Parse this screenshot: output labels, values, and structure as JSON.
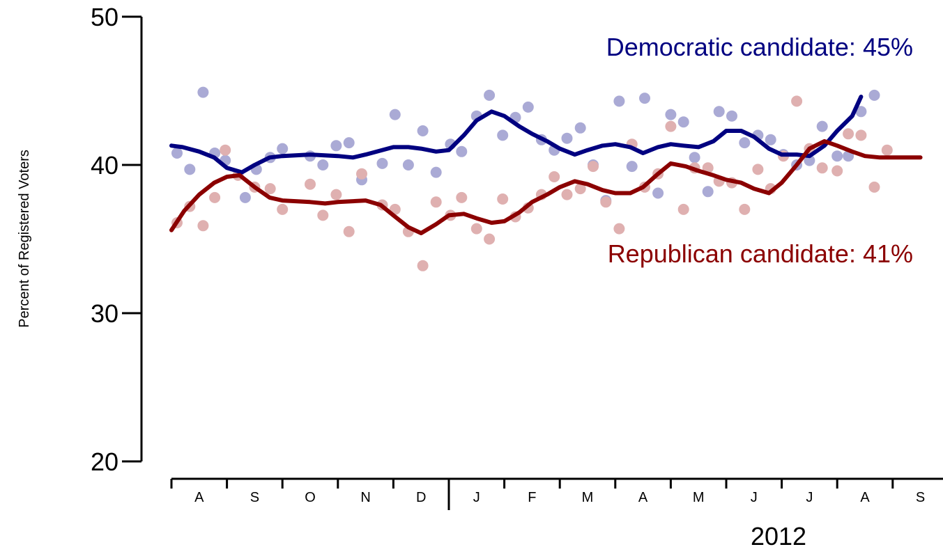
{
  "chart_data": {
    "type": "line",
    "ylabel": "Percent of Registered Voters",
    "xlabel": "",
    "ylim": [
      20,
      50
    ],
    "yticks": [
      20,
      30,
      40,
      50
    ],
    "year_label": "2012",
    "month_labels": [
      "A",
      "S",
      "O",
      "N",
      "D",
      "J",
      "F",
      "M",
      "A",
      "M",
      "J",
      "J",
      "A",
      "S"
    ],
    "grid": false,
    "series": [
      {
        "name": "Democratic candidate",
        "label": "Democratic candidate: 45%",
        "line_color": "#000080",
        "point_color": "#aaaad5",
        "points": [
          [
            0.1,
            40.8
          ],
          [
            0.33,
            39.7
          ],
          [
            0.57,
            44.9
          ],
          [
            0.78,
            40.8
          ],
          [
            0.97,
            40.3
          ],
          [
            1.33,
            37.8
          ],
          [
            1.53,
            39.7
          ],
          [
            1.78,
            40.5
          ],
          [
            2.0,
            41.1
          ],
          [
            2.5,
            40.6
          ],
          [
            2.73,
            40.0
          ],
          [
            2.97,
            41.3
          ],
          [
            3.2,
            41.5
          ],
          [
            3.43,
            39.0
          ],
          [
            3.8,
            40.1
          ],
          [
            4.03,
            43.4
          ],
          [
            4.27,
            40.0
          ],
          [
            4.53,
            42.3
          ],
          [
            4.77,
            39.5
          ],
          [
            5.03,
            41.4
          ],
          [
            5.23,
            40.9
          ],
          [
            5.5,
            43.3
          ],
          [
            5.73,
            44.7
          ],
          [
            5.97,
            42.0
          ],
          [
            6.2,
            43.2
          ],
          [
            6.43,
            43.9
          ],
          [
            6.67,
            41.7
          ],
          [
            6.9,
            41.0
          ],
          [
            7.13,
            41.8
          ],
          [
            7.37,
            42.5
          ],
          [
            7.6,
            40.0
          ],
          [
            7.83,
            37.6
          ],
          [
            8.07,
            44.3
          ],
          [
            8.3,
            39.9
          ],
          [
            8.53,
            44.5
          ],
          [
            8.77,
            38.1
          ],
          [
            9.0,
            43.4
          ],
          [
            9.23,
            42.9
          ],
          [
            9.43,
            40.5
          ],
          [
            9.67,
            38.2
          ],
          [
            9.87,
            43.6
          ],
          [
            10.1,
            43.3
          ],
          [
            10.33,
            41.5
          ],
          [
            10.57,
            42.0
          ],
          [
            10.8,
            41.7
          ],
          [
            11.03,
            40.7
          ],
          [
            11.27,
            40.0
          ],
          [
            11.5,
            40.3
          ],
          [
            11.73,
            42.6
          ],
          [
            12.0,
            40.6
          ],
          [
            12.2,
            40.6
          ],
          [
            12.43,
            43.6
          ],
          [
            12.67,
            44.7
          ]
        ],
        "trend": [
          [
            0.0,
            41.3
          ],
          [
            0.2,
            41.2
          ],
          [
            0.5,
            40.9
          ],
          [
            0.77,
            40.5
          ],
          [
            1.0,
            39.8
          ],
          [
            1.27,
            39.5
          ],
          [
            1.5,
            40.0
          ],
          [
            1.77,
            40.5
          ],
          [
            2.0,
            40.6
          ],
          [
            2.5,
            40.7
          ],
          [
            3.0,
            40.6
          ],
          [
            3.27,
            40.5
          ],
          [
            3.5,
            40.7
          ],
          [
            4.0,
            41.2
          ],
          [
            4.27,
            41.2
          ],
          [
            4.5,
            41.1
          ],
          [
            4.77,
            40.9
          ],
          [
            5.0,
            41.0
          ],
          [
            5.27,
            42.0
          ],
          [
            5.5,
            43.0
          ],
          [
            5.77,
            43.6
          ],
          [
            6.0,
            43.3
          ],
          [
            6.27,
            42.6
          ],
          [
            6.5,
            42.1
          ],
          [
            6.77,
            41.6
          ],
          [
            7.0,
            41.1
          ],
          [
            7.27,
            40.7
          ],
          [
            7.5,
            41.0
          ],
          [
            7.77,
            41.3
          ],
          [
            8.0,
            41.4
          ],
          [
            8.27,
            41.2
          ],
          [
            8.5,
            40.8
          ],
          [
            8.77,
            41.2
          ],
          [
            9.0,
            41.4
          ],
          [
            9.23,
            41.3
          ],
          [
            9.5,
            41.2
          ],
          [
            9.77,
            41.6
          ],
          [
            10.0,
            42.3
          ],
          [
            10.27,
            42.3
          ],
          [
            10.5,
            41.9
          ],
          [
            10.77,
            41.1
          ],
          [
            11.0,
            40.7
          ],
          [
            11.27,
            40.7
          ],
          [
            11.5,
            40.6
          ],
          [
            11.77,
            41.3
          ],
          [
            12.0,
            42.3
          ],
          [
            12.27,
            43.3
          ],
          [
            12.43,
            44.6
          ]
        ]
      },
      {
        "name": "Republican candidate",
        "label": "Republican candidate: 41%",
        "line_color": "#8b0000",
        "point_color": "#dfb0b0",
        "points": [
          [
            0.1,
            36.1
          ],
          [
            0.33,
            37.2
          ],
          [
            0.57,
            35.9
          ],
          [
            0.78,
            37.8
          ],
          [
            0.97,
            41.0
          ],
          [
            1.2,
            39.3
          ],
          [
            1.5,
            38.5
          ],
          [
            1.78,
            38.4
          ],
          [
            2.0,
            37.0
          ],
          [
            2.5,
            38.7
          ],
          [
            2.73,
            36.6
          ],
          [
            2.97,
            38.0
          ],
          [
            3.2,
            35.5
          ],
          [
            3.43,
            39.4
          ],
          [
            3.8,
            37.3
          ],
          [
            4.03,
            37.0
          ],
          [
            4.27,
            35.5
          ],
          [
            4.53,
            33.2
          ],
          [
            4.77,
            37.5
          ],
          [
            5.03,
            36.6
          ],
          [
            5.23,
            37.8
          ],
          [
            5.5,
            35.7
          ],
          [
            5.73,
            35.0
          ],
          [
            5.97,
            37.7
          ],
          [
            6.2,
            36.5
          ],
          [
            6.43,
            37.1
          ],
          [
            6.67,
            38.0
          ],
          [
            6.9,
            39.2
          ],
          [
            7.13,
            38.0
          ],
          [
            7.37,
            38.4
          ],
          [
            7.6,
            39.9
          ],
          [
            7.83,
            37.5
          ],
          [
            8.07,
            35.7
          ],
          [
            8.3,
            41.4
          ],
          [
            8.53,
            38.5
          ],
          [
            8.77,
            39.4
          ],
          [
            9.0,
            42.6
          ],
          [
            9.23,
            37.0
          ],
          [
            9.43,
            39.8
          ],
          [
            9.67,
            39.8
          ],
          [
            9.87,
            38.9
          ],
          [
            10.1,
            38.8
          ],
          [
            10.33,
            37.0
          ],
          [
            10.57,
            39.7
          ],
          [
            10.8,
            38.4
          ],
          [
            11.03,
            40.6
          ],
          [
            11.27,
            44.3
          ],
          [
            11.5,
            41.1
          ],
          [
            11.73,
            39.8
          ],
          [
            12.0,
            39.6
          ],
          [
            12.2,
            42.1
          ],
          [
            12.43,
            42.0
          ],
          [
            12.67,
            38.5
          ],
          [
            12.9,
            41.0
          ]
        ],
        "trend": [
          [
            0.0,
            35.6
          ],
          [
            0.23,
            36.9
          ],
          [
            0.5,
            38.0
          ],
          [
            0.77,
            38.8
          ],
          [
            1.0,
            39.2
          ],
          [
            1.23,
            39.3
          ],
          [
            1.5,
            38.5
          ],
          [
            1.77,
            37.8
          ],
          [
            2.0,
            37.6
          ],
          [
            2.5,
            37.5
          ],
          [
            2.77,
            37.4
          ],
          [
            3.0,
            37.5
          ],
          [
            3.5,
            37.6
          ],
          [
            3.77,
            37.3
          ],
          [
            4.0,
            36.6
          ],
          [
            4.27,
            35.8
          ],
          [
            4.5,
            35.4
          ],
          [
            4.77,
            36.0
          ],
          [
            5.0,
            36.6
          ],
          [
            5.27,
            36.7
          ],
          [
            5.5,
            36.4
          ],
          [
            5.77,
            36.1
          ],
          [
            6.0,
            36.2
          ],
          [
            6.27,
            36.8
          ],
          [
            6.5,
            37.5
          ],
          [
            6.77,
            38.0
          ],
          [
            7.0,
            38.5
          ],
          [
            7.27,
            38.9
          ],
          [
            7.5,
            38.7
          ],
          [
            7.77,
            38.3
          ],
          [
            8.0,
            38.1
          ],
          [
            8.27,
            38.1
          ],
          [
            8.5,
            38.5
          ],
          [
            8.77,
            39.4
          ],
          [
            9.0,
            40.1
          ],
          [
            9.27,
            39.9
          ],
          [
            9.5,
            39.6
          ],
          [
            9.77,
            39.3
          ],
          [
            10.0,
            39.0
          ],
          [
            10.27,
            38.8
          ],
          [
            10.5,
            38.4
          ],
          [
            10.77,
            38.1
          ],
          [
            11.0,
            38.8
          ],
          [
            11.27,
            40.0
          ],
          [
            11.5,
            41.1
          ],
          [
            11.77,
            41.6
          ],
          [
            12.0,
            41.3
          ],
          [
            12.27,
            40.9
          ],
          [
            12.5,
            40.6
          ],
          [
            12.77,
            40.5
          ],
          [
            13.0,
            40.5
          ],
          [
            13.23,
            40.5
          ],
          [
            13.5,
            40.5
          ]
        ]
      }
    ]
  }
}
